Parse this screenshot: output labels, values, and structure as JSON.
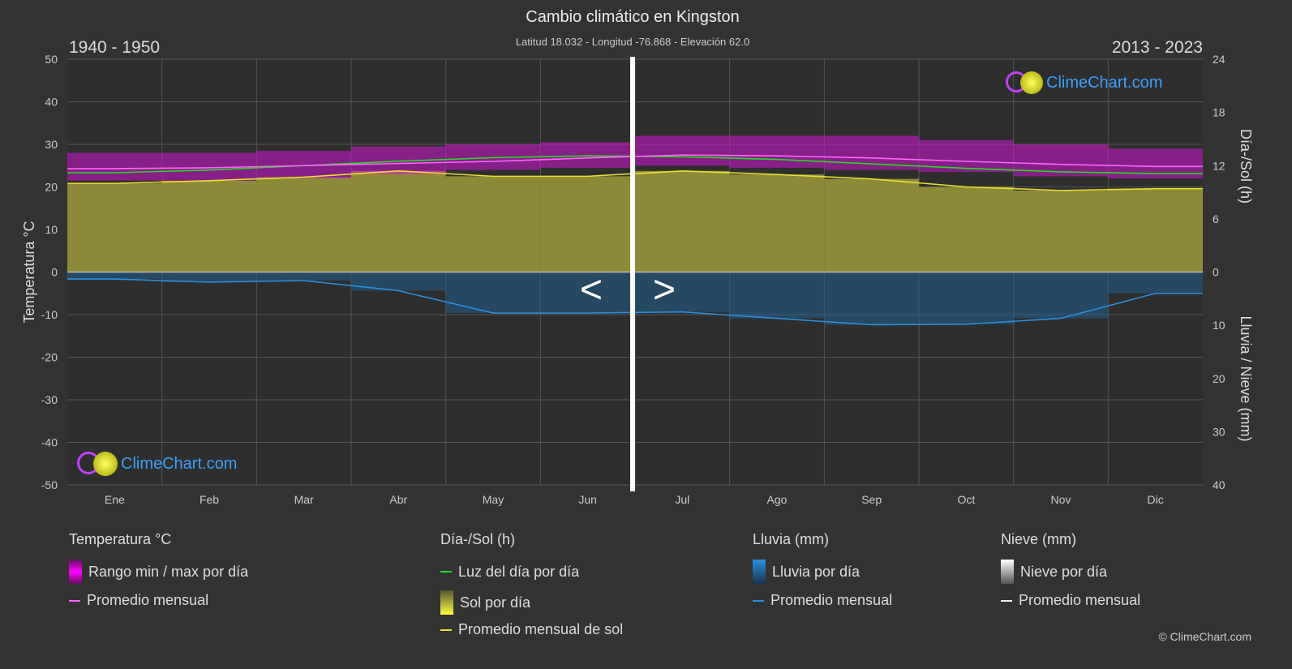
{
  "header": {
    "title": "Cambio climático en Kingston",
    "subtitle": "Latitud 18.032 - Longitud -76.868 - Elevación 62.0",
    "left_period": "1940 - 1950",
    "right_period": "2013 - 2023"
  },
  "logo_text": "ClimeChart.com",
  "copyright": "© ClimeChart.com",
  "nav": {
    "prev": "<",
    "next": ">"
  },
  "chart_data": {
    "type": "area",
    "categories": [
      "Ene",
      "Feb",
      "Mar",
      "Abr",
      "May",
      "Jun",
      "Jul",
      "Ago",
      "Sep",
      "Oct",
      "Nov",
      "Dic"
    ],
    "left_axis": {
      "label": "Temperatura °C",
      "range": [
        -50,
        50
      ],
      "ticks": [
        50,
        40,
        30,
        20,
        10,
        0,
        -10,
        -20,
        -30,
        -40,
        -50
      ]
    },
    "right_axis_top": {
      "label": "Día-/Sol (h)",
      "range": [
        0,
        24
      ],
      "ticks": [
        24,
        18,
        12,
        6,
        0
      ]
    },
    "right_axis_bottom": {
      "label": "Lluvia / Nieve (mm)",
      "range": [
        0,
        40
      ],
      "ticks": [
        0,
        10,
        20,
        30,
        40
      ]
    },
    "split": "Jan-Jun show 1940 - 1950, Jul-Dec show 2013 - 2023",
    "series": [
      {
        "name": "Rango min / max por día",
        "kind": "band",
        "axis": "temp",
        "color": "#d015d0",
        "min": [
          21.5,
          21.5,
          22,
          23,
          24,
          24.5,
          25,
          24.5,
          24,
          23.5,
          22.5,
          22
        ],
        "max": [
          28,
          28,
          28.5,
          29.5,
          30,
          30.5,
          32,
          32,
          32,
          31,
          30,
          29
        ]
      },
      {
        "name": "Promedio mensual",
        "kind": "line",
        "axis": "temp",
        "color": "#ff66ff",
        "values": [
          24.3,
          24.5,
          25.0,
          25.5,
          26.0,
          26.8,
          27.5,
          27.3,
          26.8,
          26.0,
          25.3,
          24.8
        ]
      },
      {
        "name": "Luz del día por día",
        "kind": "line",
        "axis": "hours",
        "color": "#22dd22",
        "values": [
          11.2,
          11.5,
          12.0,
          12.5,
          12.9,
          13.1,
          13.0,
          12.7,
          12.2,
          11.7,
          11.3,
          11.1
        ]
      },
      {
        "name": "Sol por día",
        "kind": "area",
        "axis": "hours",
        "color": "#8c8a38",
        "values": [
          10.0,
          10.3,
          10.7,
          11.4,
          10.8,
          10.8,
          11.4,
          11.0,
          10.5,
          9.6,
          9.2,
          9.4
        ]
      },
      {
        "name": "Promedio mensual de sol",
        "kind": "line",
        "axis": "hours",
        "color": "#e8e030",
        "values": [
          10.0,
          10.3,
          10.7,
          11.4,
          10.8,
          10.8,
          11.4,
          11.0,
          10.5,
          9.6,
          9.2,
          9.4
        ]
      },
      {
        "name": "Lluvia por día",
        "kind": "area",
        "axis": "rain",
        "color": "#1f5f8f",
        "values": [
          1.3,
          1.9,
          1.6,
          3.5,
          7.7,
          7.7,
          7.5,
          8.7,
          9.9,
          9.8,
          8.7,
          4.0
        ]
      },
      {
        "name": "Promedio mensual",
        "kind": "line",
        "axis": "rain",
        "color": "#2a8fe0",
        "values": [
          1.3,
          1.9,
          1.6,
          3.5,
          7.7,
          7.7,
          7.5,
          8.7,
          9.9,
          9.8,
          8.7,
          4.0
        ]
      }
    ],
    "grid": true
  },
  "legend": {
    "temp": {
      "title": "Temperatura °C",
      "items": [
        "Rango min / max por día",
        "Promedio mensual"
      ]
    },
    "sun": {
      "title": "Día-/Sol (h)",
      "items": [
        "Luz del día por día",
        "Sol por día",
        "Promedio mensual de sol"
      ]
    },
    "rain": {
      "title": "Lluvia (mm)",
      "items": [
        "Lluvia por día",
        "Promedio mensual"
      ]
    },
    "snow": {
      "title": "Nieve (mm)",
      "items": [
        "Nieve por día",
        "Promedio mensual"
      ]
    }
  }
}
